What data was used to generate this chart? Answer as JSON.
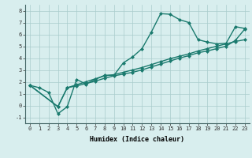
{
  "line1_x": [
    0,
    1,
    2,
    3,
    4,
    5,
    6,
    7,
    8,
    9,
    10,
    11,
    12,
    13,
    14,
    15,
    16,
    17,
    18,
    19,
    20,
    21,
    22,
    23
  ],
  "line1_y": [
    1.7,
    1.5,
    1.1,
    -0.7,
    -0.1,
    2.2,
    1.8,
    2.2,
    2.55,
    2.55,
    3.6,
    4.1,
    4.8,
    6.2,
    7.75,
    7.7,
    7.25,
    7.0,
    5.55,
    5.35,
    5.2,
    5.25,
    6.65,
    6.5
  ],
  "line2_x": [
    0,
    3,
    4,
    5,
    6,
    7,
    8,
    9,
    10,
    11,
    12,
    13,
    14,
    15,
    16,
    17,
    18,
    19,
    20,
    21,
    22,
    23
  ],
  "line2_y": [
    1.7,
    -0.1,
    1.5,
    1.75,
    2.0,
    2.25,
    2.5,
    2.6,
    2.8,
    3.0,
    3.2,
    3.45,
    3.7,
    3.95,
    4.15,
    4.35,
    4.6,
    4.8,
    5.0,
    5.2,
    5.4,
    5.55
  ],
  "line3_x": [
    0,
    3,
    4,
    5,
    6,
    7,
    8,
    9,
    10,
    11,
    12,
    13,
    14,
    15,
    16,
    17,
    18,
    19,
    20,
    21,
    22,
    23
  ],
  "line3_y": [
    1.7,
    -0.1,
    1.5,
    1.65,
    1.85,
    2.05,
    2.3,
    2.5,
    2.65,
    2.8,
    3.0,
    3.25,
    3.5,
    3.75,
    4.0,
    4.2,
    4.45,
    4.6,
    4.8,
    5.0,
    5.5,
    6.45
  ],
  "color": "#1a7a6e",
  "bg_color": "#d8eeee",
  "grid_color": "#aacccc",
  "xlabel": "Humidex (Indice chaleur)",
  "xlim": [
    -0.5,
    23.5
  ],
  "ylim": [
    -1.5,
    8.5
  ],
  "xticks": [
    0,
    1,
    2,
    3,
    4,
    5,
    6,
    7,
    8,
    9,
    10,
    11,
    12,
    13,
    14,
    15,
    16,
    17,
    18,
    19,
    20,
    21,
    22,
    23
  ],
  "yticks": [
    -1,
    0,
    1,
    2,
    3,
    4,
    5,
    6,
    7,
    8
  ],
  "marker": "D",
  "markersize": 2.0,
  "linewidth": 1.0,
  "tick_fontsize": 5.0,
  "xlabel_fontsize": 6.0
}
